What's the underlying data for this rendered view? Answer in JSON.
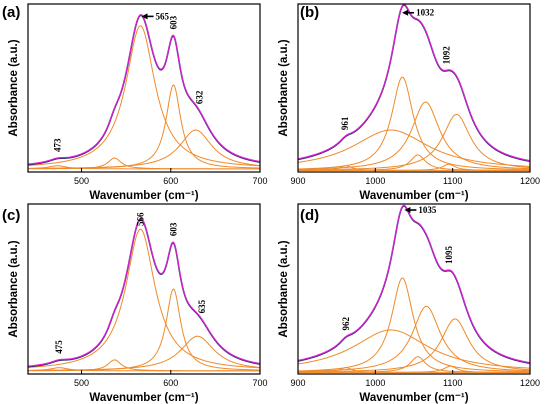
{
  "colors": {
    "fit_envelope": "#e01fd2",
    "measured": "#2e2e78",
    "components": "#f08a2a",
    "axes": "#000000"
  },
  "axis_titles": {
    "x": "Wavenumber",
    "x_unit": "(cm⁻¹)",
    "y": "Absorbance (a.u.)"
  },
  "chart_data": [
    {
      "type": "line",
      "panel": "(a)",
      "xlabel": "Wavenumber (cm⁻¹)",
      "ylabel": "Absorbance (a.u.)",
      "xlim": [
        440,
        700
      ],
      "xticks": [
        500,
        600,
        700
      ],
      "ylim": [
        0,
        1.08
      ],
      "show_yticks": false,
      "grid": false,
      "components": [
        {
          "center": 473,
          "height": 0.02,
          "width": 12
        },
        {
          "center": 537,
          "height": 0.07,
          "width": 9
        },
        {
          "center": 566,
          "height": 0.92,
          "width": 20
        },
        {
          "center": 603,
          "height": 0.54,
          "width": 10
        },
        {
          "center": 628,
          "height": 0.25,
          "width": 22
        }
      ],
      "baseline": 0.02,
      "annotations": [
        {
          "text": "473",
          "x": 473,
          "style": "vertical"
        },
        {
          "text": "565",
          "x": 565,
          "style": "arrow"
        },
        {
          "text": "603",
          "x": 603,
          "style": "vertical"
        },
        {
          "text": "632",
          "x": 632,
          "style": "vertical"
        }
      ]
    },
    {
      "type": "line",
      "panel": "(b)",
      "xlabel": "Wavenumber (cm⁻¹)",
      "ylabel": "Absorbance (a.u.)",
      "xlim": [
        900,
        1200
      ],
      "xticks": [
        900,
        1000,
        1100,
        1200
      ],
      "ylim": [
        0,
        1.08
      ],
      "show_yticks": false,
      "grid": false,
      "components": [
        {
          "center": 962,
          "height": 0.03,
          "width": 10
        },
        {
          "center": 1020,
          "height": 0.26,
          "width": 60
        },
        {
          "center": 1035,
          "height": 0.6,
          "width": 17
        },
        {
          "center": 1055,
          "height": 0.1,
          "width": 12
        },
        {
          "center": 1065,
          "height": 0.44,
          "width": 22
        },
        {
          "center": 1095,
          "height": 0.04,
          "width": 10
        },
        {
          "center": 1105,
          "height": 0.36,
          "width": 22
        }
      ],
      "baseline": 0.01,
      "annotations": [
        {
          "text": "961",
          "x": 961,
          "style": "vertical"
        },
        {
          "text": "1032",
          "x": 1032,
          "style": "arrow"
        },
        {
          "text": "1092",
          "x": 1092,
          "style": "vertical"
        }
      ]
    },
    {
      "type": "line",
      "panel": "(c)",
      "xlabel": "Wavenumber (cm⁻¹)",
      "ylabel": "Absorbance (a.u.)",
      "xlim": [
        440,
        700
      ],
      "xticks": [
        500,
        600,
        700
      ],
      "ylim": [
        0,
        1.08
      ],
      "show_yticks": false,
      "grid": false,
      "components": [
        {
          "center": 475,
          "height": 0.02,
          "width": 12
        },
        {
          "center": 537,
          "height": 0.07,
          "width": 9
        },
        {
          "center": 566,
          "height": 0.9,
          "width": 20
        },
        {
          "center": 603,
          "height": 0.52,
          "width": 10
        },
        {
          "center": 630,
          "height": 0.22,
          "width": 23
        }
      ],
      "baseline": 0.02,
      "annotations": [
        {
          "text": "475",
          "x": 475,
          "style": "vertical"
        },
        {
          "text": "566",
          "x": 566,
          "style": "vertical"
        },
        {
          "text": "603",
          "x": 603,
          "style": "vertical"
        },
        {
          "text": "635",
          "x": 635,
          "style": "vertical"
        }
      ]
    },
    {
      "type": "line",
      "panel": "(d)",
      "xlabel": "Wavenumber (cm⁻¹)",
      "ylabel": "Absorbance (a.u.)",
      "xlim": [
        900,
        1200
      ],
      "xticks": [
        900,
        1000,
        1100,
        1200
      ],
      "ylim": [
        0,
        1.08
      ],
      "show_yticks": false,
      "grid": false,
      "components": [
        {
          "center": 962,
          "height": 0.03,
          "width": 10
        },
        {
          "center": 1020,
          "height": 0.27,
          "width": 60
        },
        {
          "center": 1035,
          "height": 0.6,
          "width": 17
        },
        {
          "center": 1055,
          "height": 0.1,
          "width": 12
        },
        {
          "center": 1066,
          "height": 0.42,
          "width": 22
        },
        {
          "center": 1097,
          "height": 0.04,
          "width": 10
        },
        {
          "center": 1103,
          "height": 0.34,
          "width": 22
        }
      ],
      "baseline": 0.01,
      "annotations": [
        {
          "text": "962",
          "x": 962,
          "style": "vertical"
        },
        {
          "text": "1035",
          "x": 1035,
          "style": "arrow"
        },
        {
          "text": "1095",
          "x": 1095,
          "style": "vertical"
        }
      ]
    }
  ]
}
